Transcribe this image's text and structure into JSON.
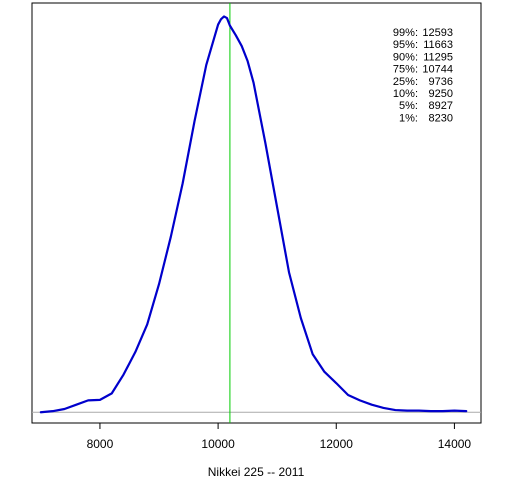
{
  "chart_data": {
    "type": "line",
    "xlabel": "Nikkei 225 -- 2011",
    "ylabel": "",
    "xlim": [
      6850,
      14450
    ],
    "ylim": [
      -2e-05,
      0.00076
    ],
    "xticks": [
      8000,
      10000,
      12000,
      14000
    ],
    "grid": false,
    "series": [
      {
        "line_color": "#0000cc",
        "x": [
          7000,
          7200,
          7400,
          7600,
          7800,
          8000,
          8200,
          8400,
          8600,
          8800,
          9000,
          9200,
          9400,
          9600,
          9800,
          10000,
          10050,
          10100,
          10150,
          10200,
          10300,
          10400,
          10500,
          10600,
          10800,
          11000,
          11200,
          11400,
          11600,
          11800,
          12000,
          12200,
          12400,
          12600,
          12800,
          13000,
          13200,
          13400,
          13600,
          13800,
          14000,
          14200
        ],
        "y": [
          0.0,
          2e-06,
          6e-06,
          1.4e-05,
          2.2e-05,
          2.3e-05,
          3.5e-05,
          7e-05,
          0.000112,
          0.000163,
          0.000238,
          0.000326,
          0.000425,
          0.00054,
          0.000645,
          0.00072,
          0.00073,
          0.000735,
          0.000732,
          0.000718,
          0.0007,
          0.00068,
          0.000652,
          0.000612,
          0.0005,
          0.00038,
          0.00026,
          0.000175,
          0.000108,
          7.5e-05,
          5.4e-05,
          3.2e-05,
          2.2e-05,
          1.4e-05,
          8e-06,
          4e-06,
          3e-06,
          3e-06,
          2e-06,
          2e-06,
          3e-06,
          2e-06
        ]
      }
    ],
    "vertical_lines": [
      {
        "x": 10200,
        "color": "#00cc00"
      }
    ],
    "baseline": {
      "y": 0,
      "color": "#aaaaaa"
    },
    "quantiles": [
      {
        "label": "99%:",
        "value": "12593"
      },
      {
        "label": "95%:",
        "value": "11663"
      },
      {
        "label": "90%:",
        "value": "11295"
      },
      {
        "label": "75%:",
        "value": "10744"
      },
      {
        "label": "25%:",
        "value": "9736"
      },
      {
        "label": "10%:",
        "value": "9250"
      },
      {
        "label": "5%:",
        "value": "8927"
      },
      {
        "label": "1%:",
        "value": "8230"
      }
    ]
  }
}
